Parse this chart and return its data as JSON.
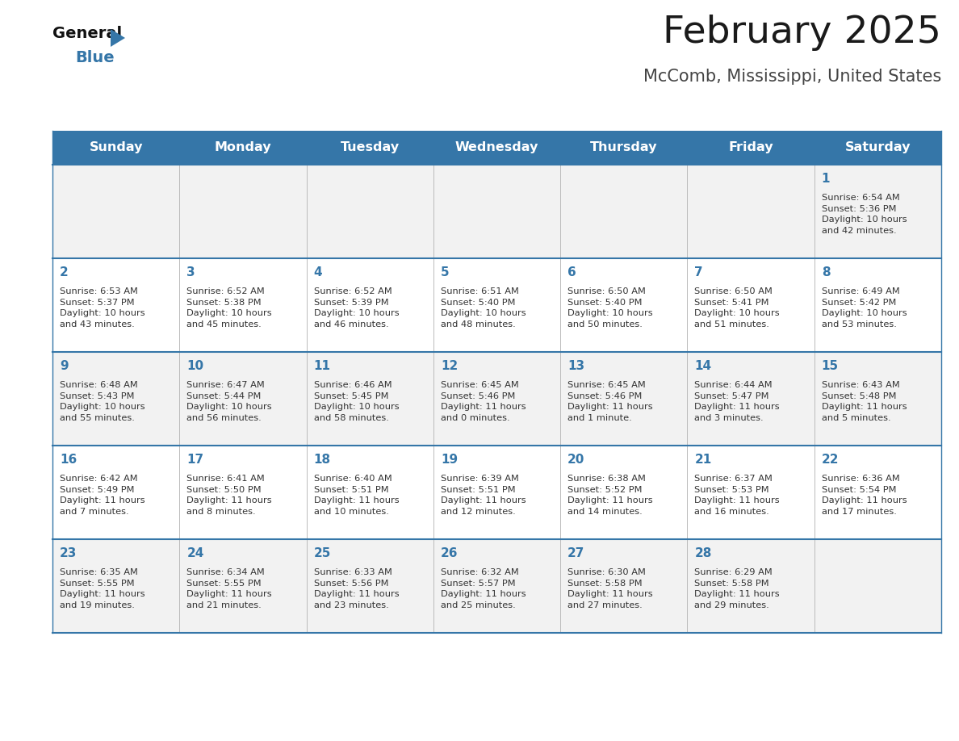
{
  "title": "February 2025",
  "subtitle": "McComb, Mississippi, United States",
  "header_color": "#3576a8",
  "header_text_color": "#ffffff",
  "day_names": [
    "Sunday",
    "Monday",
    "Tuesday",
    "Wednesday",
    "Thursday",
    "Friday",
    "Saturday"
  ],
  "background_color": "#ffffff",
  "cell_bg_light": "#f2f2f2",
  "cell_bg_white": "#ffffff",
  "border_color": "#3576a8",
  "day_num_color": "#3576a8",
  "text_color": "#333333",
  "calendar": [
    [
      null,
      null,
      null,
      null,
      null,
      null,
      {
        "day": 1,
        "sunrise": "6:54 AM",
        "sunset": "5:36 PM",
        "daylight": "10 hours\nand 42 minutes."
      }
    ],
    [
      {
        "day": 2,
        "sunrise": "6:53 AM",
        "sunset": "5:37 PM",
        "daylight": "10 hours\nand 43 minutes."
      },
      {
        "day": 3,
        "sunrise": "6:52 AM",
        "sunset": "5:38 PM",
        "daylight": "10 hours\nand 45 minutes."
      },
      {
        "day": 4,
        "sunrise": "6:52 AM",
        "sunset": "5:39 PM",
        "daylight": "10 hours\nand 46 minutes."
      },
      {
        "day": 5,
        "sunrise": "6:51 AM",
        "sunset": "5:40 PM",
        "daylight": "10 hours\nand 48 minutes."
      },
      {
        "day": 6,
        "sunrise": "6:50 AM",
        "sunset": "5:40 PM",
        "daylight": "10 hours\nand 50 minutes."
      },
      {
        "day": 7,
        "sunrise": "6:50 AM",
        "sunset": "5:41 PM",
        "daylight": "10 hours\nand 51 minutes."
      },
      {
        "day": 8,
        "sunrise": "6:49 AM",
        "sunset": "5:42 PM",
        "daylight": "10 hours\nand 53 minutes."
      }
    ],
    [
      {
        "day": 9,
        "sunrise": "6:48 AM",
        "sunset": "5:43 PM",
        "daylight": "10 hours\nand 55 minutes."
      },
      {
        "day": 10,
        "sunrise": "6:47 AM",
        "sunset": "5:44 PM",
        "daylight": "10 hours\nand 56 minutes."
      },
      {
        "day": 11,
        "sunrise": "6:46 AM",
        "sunset": "5:45 PM",
        "daylight": "10 hours\nand 58 minutes."
      },
      {
        "day": 12,
        "sunrise": "6:45 AM",
        "sunset": "5:46 PM",
        "daylight": "11 hours\nand 0 minutes."
      },
      {
        "day": 13,
        "sunrise": "6:45 AM",
        "sunset": "5:46 PM",
        "daylight": "11 hours\nand 1 minute."
      },
      {
        "day": 14,
        "sunrise": "6:44 AM",
        "sunset": "5:47 PM",
        "daylight": "11 hours\nand 3 minutes."
      },
      {
        "day": 15,
        "sunrise": "6:43 AM",
        "sunset": "5:48 PM",
        "daylight": "11 hours\nand 5 minutes."
      }
    ],
    [
      {
        "day": 16,
        "sunrise": "6:42 AM",
        "sunset": "5:49 PM",
        "daylight": "11 hours\nand 7 minutes."
      },
      {
        "day": 17,
        "sunrise": "6:41 AM",
        "sunset": "5:50 PM",
        "daylight": "11 hours\nand 8 minutes."
      },
      {
        "day": 18,
        "sunrise": "6:40 AM",
        "sunset": "5:51 PM",
        "daylight": "11 hours\nand 10 minutes."
      },
      {
        "day": 19,
        "sunrise": "6:39 AM",
        "sunset": "5:51 PM",
        "daylight": "11 hours\nand 12 minutes."
      },
      {
        "day": 20,
        "sunrise": "6:38 AM",
        "sunset": "5:52 PM",
        "daylight": "11 hours\nand 14 minutes."
      },
      {
        "day": 21,
        "sunrise": "6:37 AM",
        "sunset": "5:53 PM",
        "daylight": "11 hours\nand 16 minutes."
      },
      {
        "day": 22,
        "sunrise": "6:36 AM",
        "sunset": "5:54 PM",
        "daylight": "11 hours\nand 17 minutes."
      }
    ],
    [
      {
        "day": 23,
        "sunrise": "6:35 AM",
        "sunset": "5:55 PM",
        "daylight": "11 hours\nand 19 minutes."
      },
      {
        "day": 24,
        "sunrise": "6:34 AM",
        "sunset": "5:55 PM",
        "daylight": "11 hours\nand 21 minutes."
      },
      {
        "day": 25,
        "sunrise": "6:33 AM",
        "sunset": "5:56 PM",
        "daylight": "11 hours\nand 23 minutes."
      },
      {
        "day": 26,
        "sunrise": "6:32 AM",
        "sunset": "5:57 PM",
        "daylight": "11 hours\nand 25 minutes."
      },
      {
        "day": 27,
        "sunrise": "6:30 AM",
        "sunset": "5:58 PM",
        "daylight": "11 hours\nand 27 minutes."
      },
      {
        "day": 28,
        "sunrise": "6:29 AM",
        "sunset": "5:58 PM",
        "daylight": "11 hours\nand 29 minutes."
      },
      null
    ]
  ],
  "title_fontsize": 34,
  "subtitle_fontsize": 15,
  "header_fontsize": 11.5,
  "day_num_fontsize": 11,
  "info_fontsize": 8.2,
  "logo_general_fontsize": 14,
  "logo_blue_fontsize": 14
}
